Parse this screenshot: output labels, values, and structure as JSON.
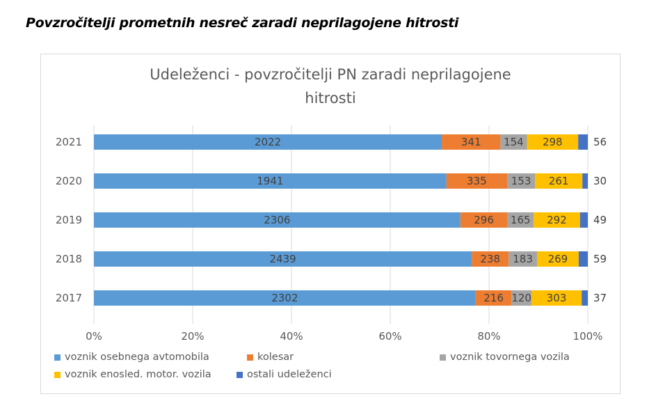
{
  "page": {
    "heading": "Povzročitelji prometnih nesreč zaradi neprilagojene hitrosti"
  },
  "chart_data": {
    "type": "bar",
    "orientation": "horizontal",
    "stacking": "percent",
    "title_lines": [
      "Udeleženci - povzročitelji PN zaradi neprilagojene",
      "hitrosti"
    ],
    "title": "Udeleženci - povzročitelji PN zaradi neprilagojene hitrosti",
    "xlabel": "",
    "ylabel": "",
    "categories": [
      "2021",
      "2020",
      "2019",
      "2018",
      "2017"
    ],
    "xlim": [
      0,
      100
    ],
    "x_ticks": [
      "0%",
      "20%",
      "40%",
      "60%",
      "80%",
      "100%"
    ],
    "grid": true,
    "legend_position": "bottom",
    "series": [
      {
        "name": "voznik osebnega avtomobila",
        "color": "#5b9bd5",
        "values": [
          2022,
          1941,
          2306,
          2439,
          2302
        ]
      },
      {
        "name": "kolesar",
        "color": "#ed7d31",
        "values": [
          341,
          335,
          296,
          238,
          216
        ]
      },
      {
        "name": "voznik tovornega vozila",
        "color": "#a5a5a5",
        "values": [
          154,
          153,
          165,
          183,
          120
        ]
      },
      {
        "name": "voznik enosled. motor. vozila",
        "color": "#ffc000",
        "values": [
          298,
          261,
          292,
          269,
          303
        ]
      },
      {
        "name": "ostali udeleženci",
        "color": "#4472c4",
        "values": [
          56,
          30,
          49,
          59,
          37
        ]
      }
    ]
  }
}
